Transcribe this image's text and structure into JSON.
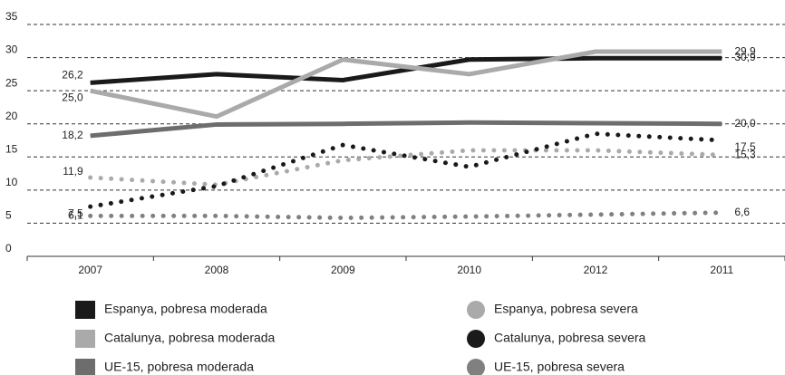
{
  "chart_data": {
    "type": "line",
    "categories": [
      "2007",
      "2008",
      "2009",
      "2010",
      "2012",
      "2011"
    ],
    "ylim": [
      0,
      35
    ],
    "yticks": [
      0,
      5,
      10,
      15,
      20,
      25,
      30,
      35
    ],
    "grid": true,
    "series": [
      {
        "name": "Espanya, pobresa moderada",
        "color": "#1a1a1a",
        "line_style": "solid",
        "values": [
          26.2,
          27.5,
          26.6,
          29.7,
          29.9,
          29.9
        ],
        "value_labels": [
          "26,2",
          null,
          null,
          null,
          null,
          "29,9"
        ]
      },
      {
        "name": "Catalunya, pobresa moderada",
        "color": "#aaaaaa",
        "line_style": "solid",
        "values": [
          25.0,
          21.1,
          29.7,
          27.5,
          30.9,
          30.9
        ],
        "value_labels": [
          "25,0",
          null,
          null,
          null,
          null,
          "30,9"
        ]
      },
      {
        "name": "UE-15, pobresa moderada",
        "color": "#6d6d6d",
        "line_style": "solid",
        "values": [
          18.2,
          19.9,
          20.0,
          20.2,
          20.1,
          20.0
        ],
        "value_labels": [
          "18,2",
          null,
          null,
          null,
          null,
          "20,0"
        ]
      },
      {
        "name": "Espanya, pobresa severa",
        "color": "#aaaaaa",
        "line_style": "dotted",
        "values": [
          11.9,
          10.8,
          14.5,
          16.0,
          16.0,
          15.3
        ],
        "value_labels": [
          "11,9",
          null,
          null,
          null,
          null,
          "15,3"
        ]
      },
      {
        "name": "Catalunya, pobresa severa",
        "color": "#1a1a1a",
        "line_style": "dotted",
        "values": [
          7.5,
          10.6,
          16.8,
          13.5,
          18.5,
          17.5
        ],
        "value_labels": [
          "7,5",
          null,
          null,
          null,
          null,
          "17,5"
        ]
      },
      {
        "name": "UE-15, pobresa severa",
        "color": "#808080",
        "line_style": "dotted",
        "values": [
          6.1,
          6.1,
          5.8,
          6.0,
          6.3,
          6.6
        ],
        "value_labels": [
          "6,1",
          null,
          null,
          null,
          null,
          "6,6"
        ]
      }
    ]
  }
}
